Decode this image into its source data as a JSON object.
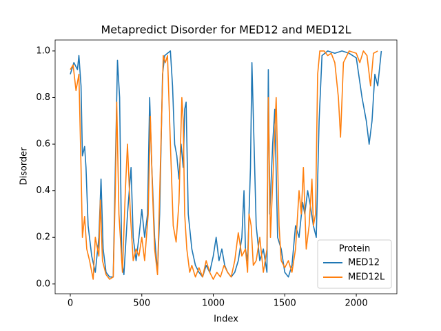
{
  "chart_data": {
    "type": "line",
    "title": "Metapredict Disorder for MED12 and MED12L",
    "xlabel": "Index",
    "ylabel": "Disorder",
    "xlim": [
      -106,
      2284
    ],
    "ylim": [
      -0.042,
      1.047
    ],
    "xticks": [
      0,
      500,
      1000,
      1500,
      2000
    ],
    "yticks": [
      {
        "value": 0,
        "label": "0.0"
      },
      {
        "value": 0.2,
        "label": "0.2"
      },
      {
        "value": 0.4,
        "label": "0.4"
      },
      {
        "value": 0.6,
        "label": "0.6"
      },
      {
        "value": 0.8,
        "label": "0.8"
      },
      {
        "value": 1,
        "label": "1.0"
      }
    ],
    "legend_title": "Protein",
    "legend": "lower right",
    "series": [
      {
        "name": "MED12",
        "color": "#1f77b4",
        "x": [
          0,
          25,
          50,
          60,
          75,
          85,
          100,
          110,
          125,
          150,
          175,
          200,
          215,
          230,
          250,
          275,
          300,
          315,
          330,
          345,
          360,
          375,
          400,
          425,
          440,
          460,
          480,
          500,
          520,
          540,
          555,
          570,
          590,
          610,
          625,
          645,
          660,
          680,
          700,
          715,
          730,
          745,
          760,
          775,
          790,
          800,
          810,
          825,
          850,
          875,
          900,
          925,
          950,
          975,
          1000,
          1020,
          1040,
          1060,
          1080,
          1100,
          1125,
          1150,
          1175,
          1200,
          1215,
          1225,
          1240,
          1260,
          1270,
          1285,
          1300,
          1325,
          1350,
          1375,
          1385,
          1395,
          1415,
          1430,
          1450,
          1475,
          1500,
          1525,
          1550,
          1575,
          1600,
          1625,
          1640,
          1660,
          1675,
          1700,
          1720,
          1740,
          1760,
          1800,
          1850,
          1900,
          1950,
          2000,
          2040,
          2070,
          2090,
          2110,
          2130,
          2150,
          2175
        ],
        "values": [
          0.9,
          0.95,
          0.92,
          0.98,
          0.85,
          0.55,
          0.59,
          0.5,
          0.25,
          0.12,
          0.05,
          0.2,
          0.45,
          0.15,
          0.05,
          0.03,
          0.03,
          0.5,
          0.96,
          0.8,
          0.1,
          0.04,
          0.3,
          0.5,
          0.2,
          0.1,
          0.2,
          0.32,
          0.2,
          0.3,
          0.8,
          0.5,
          0.2,
          0.05,
          0.3,
          0.9,
          0.98,
          0.99,
          1.0,
          0.85,
          0.6,
          0.55,
          0.45,
          0.6,
          0.5,
          0.75,
          0.78,
          0.3,
          0.15,
          0.08,
          0.05,
          0.03,
          0.08,
          0.05,
          0.12,
          0.2,
          0.1,
          0.15,
          0.08,
          0.05,
          0.03,
          0.05,
          0.1,
          0.2,
          0.4,
          0.15,
          0.1,
          0.5,
          0.95,
          0.6,
          0.25,
          0.1,
          0.15,
          0.05,
          0.92,
          0.3,
          0.6,
          0.75,
          0.2,
          0.15,
          0.05,
          0.03,
          0.08,
          0.25,
          0.2,
          0.35,
          0.3,
          0.4,
          0.35,
          0.25,
          0.2,
          0.7,
          0.98,
          1.0,
          0.99,
          1.0,
          0.99,
          0.97,
          0.8,
          0.7,
          0.6,
          0.7,
          0.9,
          0.85,
          1.0
        ]
      },
      {
        "name": "MED12L",
        "color": "#ff7f0e",
        "x": [
          0,
          20,
          40,
          60,
          75,
          85,
          100,
          115,
          135,
          160,
          175,
          200,
          210,
          225,
          250,
          275,
          300,
          315,
          325,
          340,
          365,
          385,
          400,
          420,
          440,
          460,
          480,
          500,
          520,
          545,
          560,
          575,
          590,
          610,
          630,
          650,
          665,
          680,
          700,
          720,
          740,
          760,
          780,
          790,
          800,
          815,
          835,
          850,
          875,
          900,
          925,
          950,
          975,
          1000,
          1025,
          1050,
          1075,
          1100,
          1125,
          1150,
          1175,
          1200,
          1225,
          1240,
          1250,
          1265,
          1280,
          1300,
          1325,
          1350,
          1375,
          1385,
          1400,
          1420,
          1440,
          1460,
          1475,
          1500,
          1525,
          1550,
          1575,
          1600,
          1615,
          1630,
          1650,
          1670,
          1690,
          1700,
          1715,
          1730,
          1745,
          1775,
          1800,
          1825,
          1850,
          1875,
          1890,
          1910,
          1950,
          2000,
          2025,
          2050,
          2075,
          2100,
          2120,
          2150
        ],
        "values": [
          0.92,
          0.94,
          0.83,
          0.9,
          0.5,
          0.2,
          0.29,
          0.15,
          0.1,
          0.02,
          0.2,
          0.12,
          0.36,
          0.1,
          0.04,
          0.02,
          0.03,
          0.4,
          0.78,
          0.3,
          0.05,
          0.4,
          0.6,
          0.3,
          0.1,
          0.15,
          0.12,
          0.2,
          0.1,
          0.3,
          0.72,
          0.4,
          0.15,
          0.04,
          0.5,
          0.98,
          0.95,
          0.98,
          0.6,
          0.25,
          0.18,
          0.35,
          0.8,
          0.7,
          0.3,
          0.15,
          0.05,
          0.08,
          0.03,
          0.07,
          0.03,
          0.1,
          0.05,
          0.02,
          0.05,
          0.03,
          0.08,
          0.05,
          0.03,
          0.1,
          0.22,
          0.12,
          0.15,
          0.05,
          0.3,
          0.25,
          0.08,
          0.1,
          0.2,
          0.05,
          0.15,
          0.8,
          0.2,
          0.5,
          0.8,
          0.25,
          0.1,
          0.07,
          0.1,
          0.05,
          0.15,
          0.4,
          0.3,
          0.5,
          0.15,
          0.25,
          0.45,
          0.25,
          0.3,
          0.9,
          1.0,
          1.0,
          0.98,
          0.99,
          0.95,
          0.8,
          0.63,
          0.95,
          1.0,
          0.99,
          0.95,
          1.0,
          0.98,
          0.85,
          0.99,
          1.0
        ]
      }
    ]
  }
}
